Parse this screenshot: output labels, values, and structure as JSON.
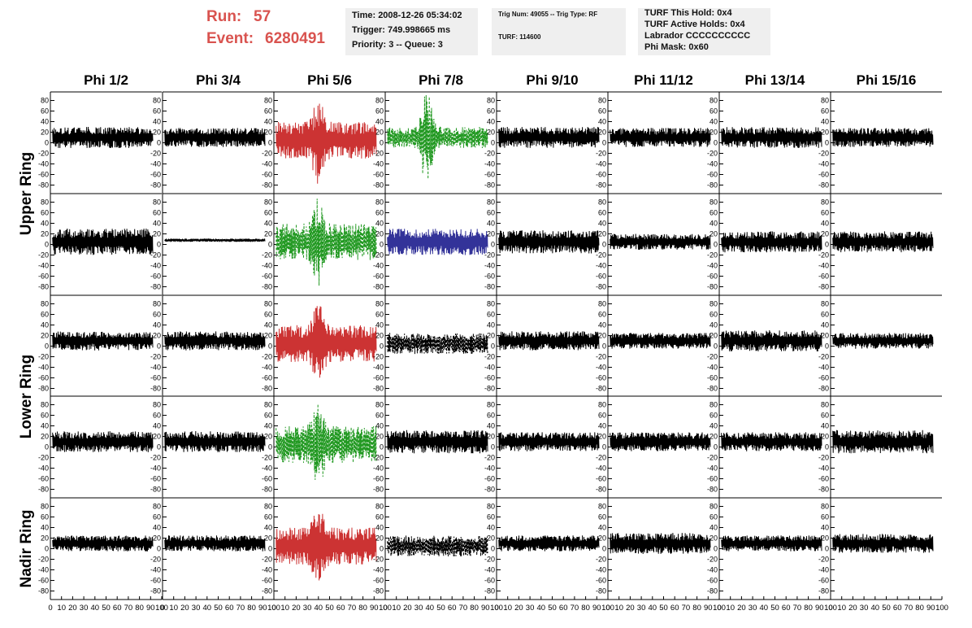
{
  "header": {
    "run_label": "Run:",
    "run_value": "57",
    "event_label": "Event:",
    "event_value": "6280491",
    "box1": {
      "time": "Time: 2008-12-26 05:34:02",
      "trigger": "Trigger: 749.998665 ms",
      "priority": "Priority: 3 -- Queue: 3"
    },
    "box2": {
      "trig": "Trig Num: 49055 -- Trig Type: RF",
      "turf": "TURF: 114600"
    },
    "box3": {
      "hold": "TURF This Hold: 0x4",
      "active": "TURF Active Holds: 0x4",
      "labrador": "Labrador CCCCCCCCCC",
      "phimask": "Phi Mask: 0x60"
    }
  },
  "columns": [
    "Phi 1/2",
    "Phi 3/4",
    "Phi 5/6",
    "Phi 7/8",
    "Phi 9/10",
    "Phi 11/12",
    "Phi 13/14",
    "Phi 15/16"
  ],
  "row_groups": [
    {
      "label": "Upper Ring",
      "rows": [
        0,
        1
      ]
    },
    {
      "label": "Lower Ring",
      "rows": [
        2,
        3
      ]
    },
    {
      "label": "Nadir Ring",
      "rows": [
        4
      ]
    }
  ],
  "chart_data": {
    "type": "line",
    "xlim": [
      0,
      100
    ],
    "ylim": [
      -90,
      90
    ],
    "x_ticks": [
      0,
      10,
      20,
      30,
      40,
      50,
      60,
      70,
      80,
      90,
      100
    ],
    "x_tick_labels": [
      "0",
      "10",
      "20",
      "30",
      "40",
      "50",
      "60",
      "70",
      "80",
      "90",
      "100"
    ],
    "y_ticks": [
      -80,
      -60,
      -40,
      -20,
      0,
      20,
      40,
      60,
      80
    ],
    "y_tick_labels": [
      "-80",
      "-60",
      "-40",
      "-20",
      "0",
      "20",
      "40",
      "60",
      "80"
    ],
    "sample_count": 260,
    "colors": {
      "normal": "#000000",
      "red": "#cc3333",
      "green": "#229922",
      "blue": "#333399"
    },
    "panels": [
      [
        {
          "style": "normal",
          "amp": 20,
          "mean": 10
        },
        {
          "style": "normal",
          "amp": 18,
          "mean": 10
        },
        {
          "style": "red",
          "amp": 35,
          "mean": 5,
          "peak": 85,
          "peak_x": 40
        },
        {
          "style": "green",
          "amp": 20,
          "mean": 10,
          "peak": 95,
          "peak_x": 37,
          "dashed": true
        },
        {
          "style": "normal",
          "amp": 20,
          "mean": 10
        },
        {
          "style": "normal",
          "amp": 18,
          "mean": 10
        },
        {
          "style": "normal",
          "amp": 20,
          "mean": 10
        },
        {
          "style": "normal",
          "amp": 18,
          "mean": 10
        }
      ],
      [
        {
          "style": "normal",
          "amp": 25,
          "mean": 5
        },
        {
          "style": "normal",
          "amp": 3,
          "mean": 8
        },
        {
          "style": "green",
          "amp": 35,
          "mean": 5,
          "peak": 85,
          "peak_x": 40,
          "dashed": true
        },
        {
          "style": "blue",
          "amp": 25,
          "mean": 5
        },
        {
          "style": "normal",
          "amp": 22,
          "mean": 5
        },
        {
          "style": "normal",
          "amp": 15,
          "mean": 5
        },
        {
          "style": "normal",
          "amp": 20,
          "mean": 5
        },
        {
          "style": "normal",
          "amp": 20,
          "mean": 5
        }
      ],
      [
        {
          "style": "normal",
          "amp": 18,
          "mean": 10
        },
        {
          "style": "normal",
          "amp": 18,
          "mean": 10
        },
        {
          "style": "red",
          "amp": 35,
          "mean": 5,
          "peak": 85,
          "peak_x": 40
        },
        {
          "style": "normal",
          "amp": 20,
          "mean": 5,
          "dashed": true
        },
        {
          "style": "normal",
          "amp": 18,
          "mean": 10
        },
        {
          "style": "normal",
          "amp": 15,
          "mean": 10
        },
        {
          "style": "normal",
          "amp": 20,
          "mean": 10
        },
        {
          "style": "normal",
          "amp": 15,
          "mean": 10
        }
      ],
      [
        {
          "style": "normal",
          "amp": 20,
          "mean": 10
        },
        {
          "style": "normal",
          "amp": 20,
          "mean": 10
        },
        {
          "style": "green",
          "amp": 35,
          "mean": 5,
          "peak": 85,
          "peak_x": 40,
          "dashed": true
        },
        {
          "style": "normal",
          "amp": 22,
          "mean": 10
        },
        {
          "style": "normal",
          "amp": 18,
          "mean": 10
        },
        {
          "style": "normal",
          "amp": 18,
          "mean": 10
        },
        {
          "style": "normal",
          "amp": 18,
          "mean": 10
        },
        {
          "style": "normal",
          "amp": 22,
          "mean": 10
        }
      ],
      [
        {
          "style": "normal",
          "amp": 15,
          "mean": 10
        },
        {
          "style": "normal",
          "amp": 15,
          "mean": 10
        },
        {
          "style": "red",
          "amp": 35,
          "mean": 5,
          "peak": 80,
          "peak_x": 40
        },
        {
          "style": "normal",
          "amp": 20,
          "mean": 5,
          "dashed": true
        },
        {
          "style": "normal",
          "amp": 15,
          "mean": 10
        },
        {
          "style": "normal",
          "amp": 20,
          "mean": 10
        },
        {
          "style": "normal",
          "amp": 15,
          "mean": 10
        },
        {
          "style": "normal",
          "amp": 18,
          "mean": 10
        }
      ]
    ]
  }
}
